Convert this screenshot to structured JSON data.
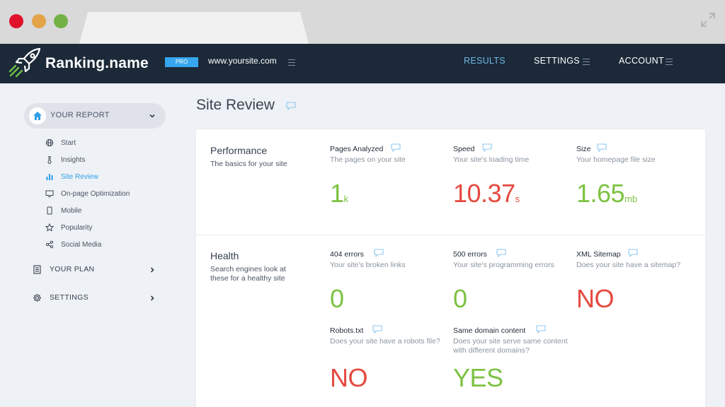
{
  "brand": {
    "name": "Ranking.name",
    "badge": "PRO",
    "site": "www.yoursite.com"
  },
  "nav": {
    "results": "RESULTS",
    "settings": "SETTINGS",
    "account": "ACCOUNT"
  },
  "sidebar": {
    "report_label": "YOUR REPORT",
    "items": [
      {
        "label": "Start",
        "icon": "globe-icon"
      },
      {
        "label": "Insights",
        "icon": "thermometer-icon"
      },
      {
        "label": "Site Review",
        "icon": "bar-chart-icon",
        "active": true
      },
      {
        "label": "On-page Optimization",
        "icon": "monitor-icon"
      },
      {
        "label": "Mobile",
        "icon": "mobile-icon"
      },
      {
        "label": "Popularity",
        "icon": "star-icon"
      },
      {
        "label": "Social Media",
        "icon": "share-icon"
      }
    ],
    "plan_label": "YOUR PLAN",
    "settings_label": "SETTINGS"
  },
  "page": {
    "title": "Site Review"
  },
  "performance": {
    "title": "Performance",
    "subtitle": "The basics for your site",
    "metrics": [
      {
        "title": "Pages Analyzed",
        "subtitle": "The pages on your site",
        "value": "1",
        "unit": "k",
        "color": "#7dc243"
      },
      {
        "title": "Speed",
        "subtitle": "Your site's loading time",
        "value": "10.37",
        "unit": "s",
        "color": "#e5493f"
      },
      {
        "title": "Size",
        "subtitle": "Your homepage file size",
        "value": "1.65",
        "unit": "mb",
        "color": "#7dc243"
      }
    ]
  },
  "health": {
    "title": "Health",
    "subtitle": "Search engines look at these for a healthy site",
    "metrics": [
      {
        "title": "404 errors",
        "subtitle": "Your site's broken links",
        "value": "0",
        "color": "#7dc243"
      },
      {
        "title": "500 errors",
        "subtitle": "Your site's programming errors",
        "value": "0",
        "color": "#7dc243"
      },
      {
        "title": "XML Sitemap",
        "subtitle": "Does your site have a sitemap?",
        "value": "NO",
        "color": "#e5493f"
      },
      {
        "title": "Robots.txt",
        "subtitle": "Does your site have a robots file?",
        "value": "NO",
        "color": "#e5493f"
      },
      {
        "title": "Same domain content",
        "subtitle": "Does your site serve same content with different domains?",
        "value": "YES",
        "color": "#7dc243"
      }
    ]
  },
  "colors": {
    "topbar": "#1b2938",
    "accent": "#2f9ee8",
    "good": "#7dc243",
    "bad": "#e5493f"
  }
}
